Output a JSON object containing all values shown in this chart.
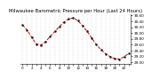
{
  "title": "Milwaukee Barometric Pressure per Hour (Last 24 Hours)",
  "hours": [
    0,
    1,
    2,
    3,
    4,
    5,
    6,
    7,
    8,
    9,
    10,
    11,
    12,
    13,
    14,
    15,
    16,
    17,
    18,
    19,
    20,
    21,
    22,
    23
  ],
  "pressure": [
    30.28,
    30.1,
    29.85,
    29.62,
    29.58,
    29.7,
    29.88,
    30.05,
    30.22,
    30.38,
    30.48,
    30.52,
    30.42,
    30.25,
    30.05,
    29.82,
    29.6,
    29.42,
    29.28,
    29.18,
    29.12,
    29.1,
    29.18,
    29.3
  ],
  "ylim": [
    28.95,
    30.65
  ],
  "yticks": [
    29.0,
    29.2,
    29.4,
    29.6,
    29.8,
    30.0,
    30.2,
    30.4,
    30.6
  ],
  "line_color": "#cc0000",
  "marker_color": "#111111",
  "bg_color": "#ffffff",
  "grid_color": "#bbbbbb",
  "title_fontsize": 3.8,
  "tick_fontsize": 3.0,
  "marker_size": 1.5,
  "line_width": 0.7
}
